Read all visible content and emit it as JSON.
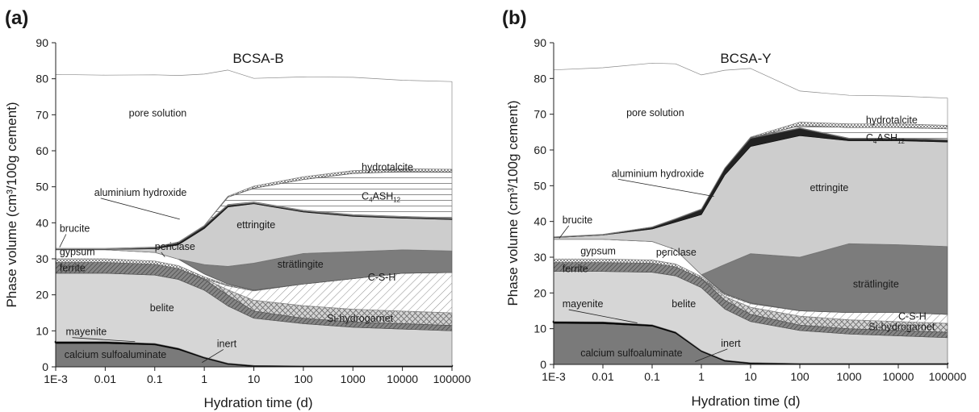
{
  "figure": {
    "panels": [
      {
        "letter": "(a)",
        "title": "BCSA-B",
        "xlabel": "Hydration time (d)",
        "ylabel": "Phase volume (cm³/100g cement)",
        "yticks": [
          "0",
          "10",
          "20",
          "30",
          "40",
          "50",
          "60",
          "70",
          "80",
          "90"
        ],
        "xticks": [
          "1E-3",
          "0.01",
          "0.1",
          "1",
          "10",
          "100",
          "1000",
          "10000",
          "100000"
        ],
        "labels": {
          "pore_solution": "pore solution",
          "hydrotalcite": "hydrotalcite",
          "c4ash12": "C4ASH12",
          "aluminium_hydroxide": "aluminium hydroxide",
          "brucite": "brucite",
          "periclase": "periclase",
          "gypsum": "gypsum",
          "ferrite": "ferrite",
          "ettringite": "ettringite",
          "stratlingite": "strätlingite",
          "csh": "C-S-H",
          "si_hydrogarnet": "Si-hydrogarnet",
          "belite": "belite",
          "mayenite": "mayenite",
          "inert": "inert",
          "calcium_sulfoaluminate": "calcium sulfoaluminate"
        }
      },
      {
        "letter": "(b)",
        "title": "BCSA-Y",
        "xlabel": "Hydration time (d)",
        "ylabel": "Phase volume (cm³/100g cement)",
        "yticks": [
          "0",
          "10",
          "20",
          "30",
          "40",
          "50",
          "60",
          "70",
          "80",
          "90"
        ],
        "xticks": [
          "1E-3",
          "0.01",
          "0.1",
          "1",
          "10",
          "100",
          "1000",
          "10000",
          "100000"
        ],
        "labels": {
          "pore_solution": "pore solution",
          "hydrotalcite": "hydrotalcite",
          "c4ash12": "C4ASH12",
          "aluminium_hydroxide": "aluminium hydroxide",
          "brucite": "brucite",
          "periclase": "periclase",
          "gypsum": "gypsum",
          "ferrite": "ferrite",
          "ettringite": "ettringite",
          "stratlingite": "strätlingite",
          "csh": "C-S-H",
          "si_hydrogarnet": "Si-hydrogarnet",
          "belite": "belite",
          "mayenite": "mayenite",
          "inert": "inert",
          "calcium_sulfoaluminate": "calcium sulfoaluminate"
        }
      }
    ]
  },
  "chart_data": [
    {
      "type": "area",
      "title": "BCSA-B",
      "xlabel": "Hydration time (d)",
      "ylabel": "Phase volume (cm³/100g cement)",
      "xscale": "log",
      "xlim": [
        0.001,
        100000
      ],
      "ylim": [
        0,
        90
      ],
      "x": [
        0.001,
        0.01,
        0.1,
        0.3,
        1,
        3,
        10,
        100,
        1000,
        10000,
        100000
      ],
      "series": [
        {
          "name": "calcium sulfoaluminate",
          "values": [
            6.5,
            6.5,
            6.1,
            4.8,
            2.4,
            0.7,
            0.1,
            0,
            0,
            0,
            0
          ]
        },
        {
          "name": "inert",
          "values": [
            0.3,
            0.3,
            0.3,
            0.3,
            0.3,
            0.3,
            0.3,
            0.3,
            0.3,
            0.3,
            0.3
          ]
        },
        {
          "name": "mayenite",
          "values": [
            0.2,
            0.2,
            0.1,
            0.1,
            0,
            0,
            0,
            0,
            0,
            0,
            0
          ]
        },
        {
          "name": "belite",
          "values": [
            19.0,
            19.0,
            19.0,
            19.1,
            18.6,
            15.9,
            13.1,
            11.7,
            10.7,
            10.2,
            9.7
          ]
        },
        {
          "name": "ferrite",
          "values": [
            3.0,
            3.0,
            3.0,
            3.0,
            3.0,
            3.0,
            2.0,
            1.5,
            1.5,
            1.5,
            1.5
          ]
        },
        {
          "name": "Si-hydrogarnet",
          "values": [
            0,
            0,
            0,
            0,
            0.2,
            1.5,
            3.0,
            3.5,
            3.5,
            3.5,
            3.5
          ]
        },
        {
          "name": "C-S-H",
          "values": [
            0,
            0,
            0,
            0,
            0,
            1.1,
            2.6,
            6.0,
            8.5,
            10.5,
            11.2
          ]
        },
        {
          "name": "periclase",
          "values": [
            1.0,
            1.0,
            0.9,
            0.8,
            0.5,
            0.3,
            0.2,
            0,
            0,
            0,
            0
          ]
        },
        {
          "name": "gypsum",
          "values": [
            2.5,
            2.5,
            2.4,
            1.8,
            0.8,
            0.2,
            0,
            0,
            0,
            0,
            0
          ]
        },
        {
          "name": "strätlingite",
          "values": [
            0,
            0,
            0,
            0,
            2.6,
            4.9,
            7.5,
            8.5,
            7.5,
            6.5,
            6.0
          ]
        },
        {
          "name": "ettringite",
          "values": [
            0.1,
            0.1,
            1.0,
            4.0,
            10.0,
            16.5,
            16.5,
            11.5,
            9.8,
            8.8,
            8.7
          ]
        },
        {
          "name": "aluminium hydroxide",
          "values": [
            0,
            0,
            0.2,
            0.5,
            0.6,
            0.4,
            0.2,
            0.2,
            0.2,
            0.2,
            0.2
          ]
        },
        {
          "name": "brucite",
          "values": [
            0.3,
            0.3,
            0.3,
            0.3,
            0.3,
            0.3,
            0.3,
            0.3,
            0.3,
            0.3,
            0.3
          ]
        },
        {
          "name": "C4ASH12",
          "values": [
            0,
            0,
            0,
            0,
            0,
            2.0,
            3.8,
            8.5,
            11.4,
            12.4,
            12.7
          ]
        },
        {
          "name": "hydrotalcite",
          "values": [
            0,
            0,
            0,
            0,
            0,
            0.3,
            0.6,
            0.8,
            0.8,
            0.8,
            0.8
          ]
        },
        {
          "name": "pore solution",
          "values": [
            48.3,
            48.1,
            47.8,
            46.2,
            42.0,
            35.0,
            29.9,
            27.7,
            25.9,
            24.6,
            24.3
          ]
        }
      ]
    },
    {
      "type": "area",
      "title": "BCSA-Y",
      "xlabel": "Hydration time (d)",
      "ylabel": "Phase volume (cm³/100g cement)",
      "xscale": "log",
      "xlim": [
        0.001,
        100000
      ],
      "ylim": [
        0,
        90
      ],
      "x": [
        0.001,
        0.01,
        0.1,
        0.3,
        1,
        3,
        10,
        100,
        1000,
        10000,
        100000
      ],
      "series": [
        {
          "name": "calcium sulfoaluminate",
          "values": [
            11.5,
            11.4,
            10.7,
            8.7,
            3.6,
            0.9,
            0.2,
            0,
            0,
            0,
            0
          ]
        },
        {
          "name": "inert",
          "values": [
            0.3,
            0.3,
            0.3,
            0.3,
            0.3,
            0.3,
            0.3,
            0.3,
            0.3,
            0.3,
            0.3
          ]
        },
        {
          "name": "mayenite",
          "values": [
            0.2,
            0.2,
            0.1,
            0.1,
            0,
            0,
            0,
            0,
            0,
            0,
            0
          ]
        },
        {
          "name": "belite",
          "values": [
            14.0,
            14.1,
            14.7,
            15.7,
            17.6,
            14.3,
            11.5,
            9.2,
            8.2,
            7.7,
            7.2
          ]
        },
        {
          "name": "ferrite",
          "values": [
            2.5,
            2.5,
            2.5,
            2.5,
            2.5,
            2.5,
            2.0,
            1.5,
            1.5,
            1.5,
            1.5
          ]
        },
        {
          "name": "Si-hydrogarnet",
          "values": [
            0,
            0,
            0,
            0,
            0.1,
            1.0,
            2.0,
            2.5,
            2.5,
            2.5,
            2.5
          ]
        },
        {
          "name": "C-S-H",
          "values": [
            0,
            0,
            0,
            0,
            0,
            0.5,
            1.0,
            1.5,
            2.0,
            2.5,
            2.5
          ]
        },
        {
          "name": "periclase",
          "values": [
            1.0,
            1.0,
            0.9,
            0.8,
            0.5,
            0.3,
            0.2,
            0,
            0,
            0,
            0
          ]
        },
        {
          "name": "gypsum",
          "values": [
            5.5,
            5.5,
            5.2,
            4.0,
            0.5,
            0,
            0,
            0,
            0,
            0,
            0
          ]
        },
        {
          "name": "strätlingite",
          "values": [
            0,
            0,
            0,
            0,
            0,
            8.2,
            13.8,
            15.0,
            19.3,
            19.0,
            19.0
          ]
        },
        {
          "name": "ettringite",
          "values": [
            0.5,
            1.2,
            3.5,
            7.7,
            16.8,
            25.0,
            30.0,
            34.0,
            28.8,
            29.1,
            29.2
          ]
        },
        {
          "name": "aluminium hydroxide",
          "values": [
            0,
            0,
            0.4,
            0.8,
            1.4,
            1.8,
            2.2,
            2.0,
            0.5,
            0.5,
            0.5
          ]
        },
        {
          "name": "brucite",
          "values": [
            0.2,
            0.2,
            0.2,
            0.2,
            0.2,
            0.2,
            0.2,
            0.2,
            0.2,
            0.2,
            0.2
          ]
        },
        {
          "name": "C4ASH12",
          "values": [
            0,
            0,
            0,
            0,
            0,
            0,
            0,
            0.6,
            3.0,
            3.0,
            3.0
          ]
        },
        {
          "name": "hydrotalcite",
          "values": [
            0,
            0,
            0,
            0,
            0,
            0,
            0.2,
            1.0,
            1.0,
            1.0,
            1.0
          ]
        },
        {
          "name": "pore solution",
          "values": [
            46.7,
            46.6,
            45.8,
            43.3,
            37.5,
            27.3,
            19.2,
            8.7,
            8.0,
            7.8,
            7.6
          ]
        }
      ]
    }
  ]
}
